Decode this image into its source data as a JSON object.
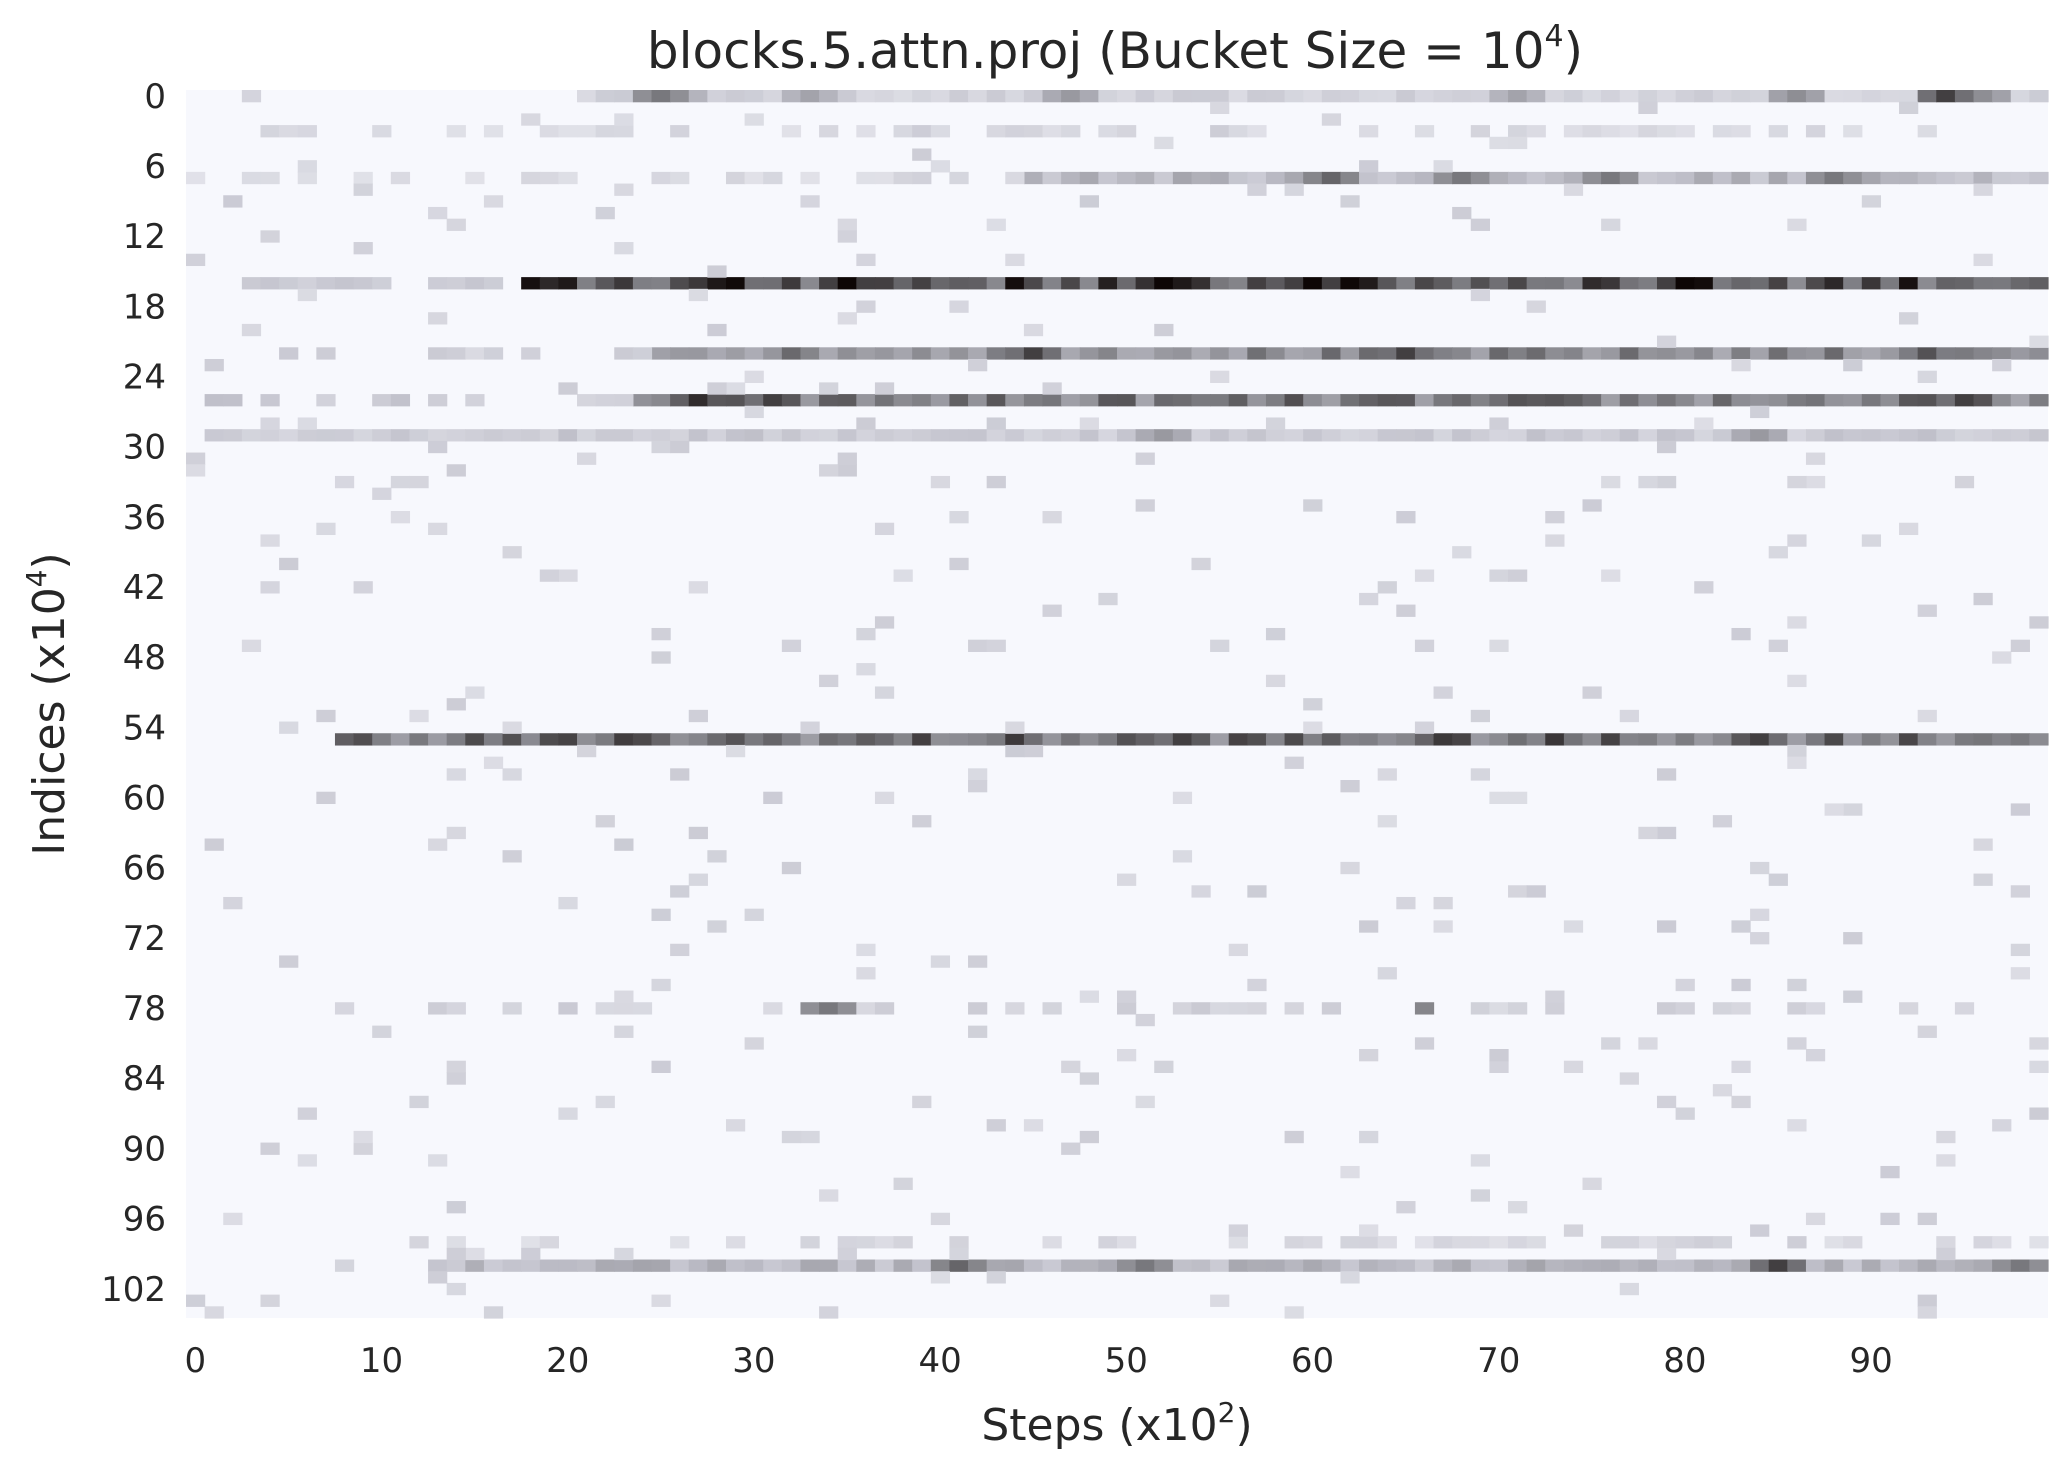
{
  "chart_data": {
    "type": "heatmap",
    "title": {
      "text": "blocks.5.attn.proj (Bucket Size = 10",
      "superscript": "4",
      "suffix": ")"
    },
    "xlabel": {
      "text": "Steps (x10",
      "superscript": "2",
      "suffix": ")"
    },
    "ylabel": {
      "text": "Indices (x10",
      "superscript": "4",
      "suffix": ")"
    },
    "x_ticks": [
      "0",
      "10",
      "20",
      "30",
      "40",
      "50",
      "60",
      "70",
      "80",
      "90"
    ],
    "y_ticks": [
      "0",
      "6",
      "12",
      "18",
      "24",
      "30",
      "36",
      "42",
      "48",
      "54",
      "60",
      "66",
      "72",
      "78",
      "84",
      "90",
      "96",
      "102"
    ],
    "n_cols": 100,
    "n_rows": 105,
    "background_color": "#f7f8fd",
    "colormap": "bone_r",
    "rows": [
      {
        "index": 0,
        "level": 0.25,
        "from": 21,
        "to": 99,
        "peaks": [
          {
            "at": 25,
            "level": 0.7
          },
          {
            "at": 26,
            "level": 0.5
          },
          {
            "at": 33,
            "level": 0.5
          },
          {
            "at": 47,
            "level": 0.55
          },
          {
            "at": 71,
            "level": 0.5
          },
          {
            "at": 86,
            "level": 0.6
          },
          {
            "at": 94,
            "level": 0.85
          },
          {
            "at": 96,
            "level": 0.6
          }
        ]
      },
      {
        "index": 3,
        "level": 0.2,
        "from": 2,
        "to": 55,
        "sparse": true
      },
      {
        "index": 3,
        "level": 0.2,
        "from": 56,
        "to": 90,
        "sparse": true
      },
      {
        "index": 7,
        "level": 0.4,
        "from": 45,
        "to": 99,
        "peaks": [
          {
            "at": 61,
            "level": 0.75
          },
          {
            "at": 68,
            "level": 0.7
          },
          {
            "at": 76,
            "level": 0.7
          },
          {
            "at": 88,
            "level": 0.7
          }
        ]
      },
      {
        "index": 7,
        "level": 0.2,
        "from": 0,
        "to": 44,
        "sparse": true
      },
      {
        "index": 16,
        "level": 0.8,
        "from": 18,
        "to": 99,
        "peaks": [
          {
            "at": 35,
            "level": 1.0
          },
          {
            "at": 52,
            "level": 1.0
          },
          {
            "at": 60,
            "level": 1.0
          },
          {
            "at": 80,
            "level": 1.0
          }
        ]
      },
      {
        "index": 16,
        "level": 0.3,
        "from": 3,
        "to": 17,
        "sparse": true
      },
      {
        "index": 22,
        "level": 0.6,
        "from": 25,
        "to": 99,
        "peaks": [
          {
            "at": 45,
            "level": 0.85
          },
          {
            "at": 65,
            "level": 0.85
          },
          {
            "at": 93,
            "level": 0.8
          }
        ]
      },
      {
        "index": 22,
        "level": 0.25,
        "from": 4,
        "to": 24,
        "sparse": true
      },
      {
        "index": 26,
        "level": 0.65,
        "from": 24,
        "to": 99,
        "peaks": [
          {
            "at": 27,
            "level": 0.9
          },
          {
            "at": 31,
            "level": 0.85
          },
          {
            "at": 95,
            "level": 0.85
          }
        ]
      },
      {
        "index": 26,
        "level": 0.3,
        "from": 1,
        "to": 23,
        "sparse": true
      },
      {
        "index": 29,
        "level": 0.3,
        "from": 1,
        "to": 99,
        "peaks": [
          {
            "at": 52,
            "level": 0.55
          },
          {
            "at": 84,
            "level": 0.55
          }
        ]
      },
      {
        "index": 55,
        "level": 0.7,
        "from": 8,
        "to": 99,
        "peaks": [
          {
            "at": 53,
            "level": 0.85
          },
          {
            "at": 66,
            "level": 0.75
          },
          {
            "at": 84,
            "level": 0.85
          }
        ]
      },
      {
        "index": 78,
        "level": 0.25,
        "from": 11,
        "to": 95,
        "sparse": true,
        "peaks": [
          {
            "at": 34,
            "level": 0.7
          },
          {
            "at": 67,
            "level": 0.75
          }
        ]
      },
      {
        "index": 98,
        "level": 0.2,
        "from": 10,
        "to": 99,
        "sparse": true
      },
      {
        "index": 100,
        "level": 0.4,
        "from": 13,
        "to": 99,
        "peaks": [
          {
            "at": 41,
            "level": 0.75
          },
          {
            "at": 51,
            "level": 0.7
          },
          {
            "at": 85,
            "level": 0.85
          },
          {
            "at": 98,
            "level": 0.7
          }
        ]
      }
    ]
  }
}
